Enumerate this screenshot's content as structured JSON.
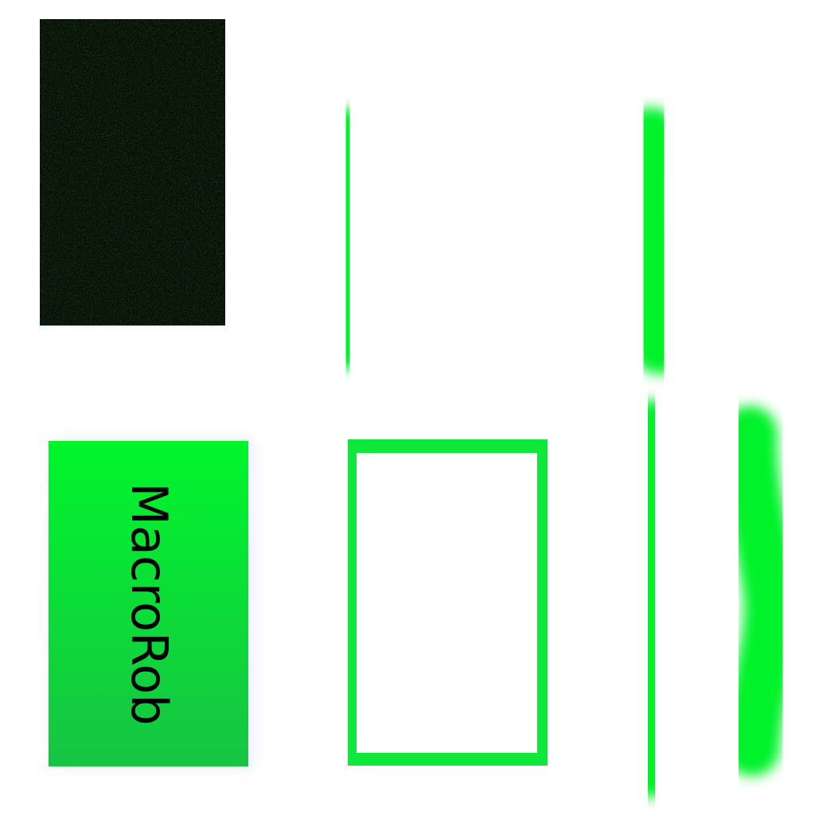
{
  "label_card": {
    "text": "MacroRob"
  },
  "colors": {
    "canvas_background": "#ffffff",
    "noise_base": "#061006",
    "noise_speckle": "#2a7a1e",
    "stroke_green": "#00f22a",
    "card_green_top": "#00f52c",
    "card_green_bottom": "#17c444",
    "frame_green": "#0ee83a",
    "text": "#000000"
  },
  "icons": [
    "green-stroke-icon"
  ]
}
